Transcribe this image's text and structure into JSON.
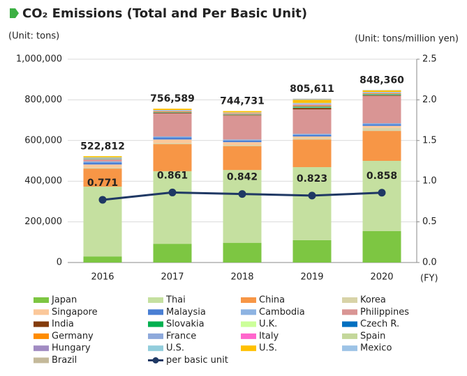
{
  "chart_data": {
    "type": "bar",
    "stacked": true,
    "title": "CO₂ Emissions (Total and Per Basic Unit)",
    "y_label": "(Unit: tons)",
    "y2_label": "(Unit: tons/million yen)",
    "x_label": "(FY)",
    "categories": [
      "2016",
      "2017",
      "2018",
      "2019",
      "2020"
    ],
    "totals": [
      522812,
      756589,
      744731,
      805611,
      848360
    ],
    "total_labels": [
      "522,812",
      "756,589",
      "744,731",
      "805,611",
      "848,360"
    ],
    "ylim": [
      0,
      1000000
    ],
    "yticks": [
      0,
      {
        "value": 200000,
        "label": "200,000"
      },
      {
        "value": 400000,
        "label": "400,000"
      },
      {
        "value": 600000,
        "label": "600,000"
      },
      {
        "value": 800000,
        "label": "800,000"
      },
      {
        "value": 1000000,
        "label": "1,000,000"
      }
    ],
    "y2lim": [
      0,
      2.5
    ],
    "y2ticks": [
      {
        "value": 0,
        "label": "0.0"
      },
      0.5,
      {
        "value": 1,
        "label": "1.0"
      },
      1.5,
      {
        "value": 2,
        "label": "2.0"
      },
      2.5
    ],
    "grid": true,
    "series": [
      {
        "name": "Japan",
        "color": "#7dc642",
        "values": [
          30000,
          92000,
          97000,
          110000,
          155000
        ]
      },
      {
        "name": "Thai",
        "color": "#c5e0a0",
        "values": [
          343000,
          357000,
          358000,
          359000,
          345000
        ]
      },
      {
        "name": "China",
        "color": "#f79646",
        "values": [
          89000,
          133000,
          117000,
          136000,
          147000
        ]
      },
      {
        "name": "Korea",
        "color": "#d8d3a8",
        "values": [
          5000,
          5000,
          5000,
          5000,
          15000
        ]
      },
      {
        "name": "Singapore",
        "color": "#fbc89a",
        "values": [
          15000,
          18000,
          15000,
          10000,
          10000
        ]
      },
      {
        "name": "Malaysia",
        "color": "#4a7fd4",
        "values": [
          10000,
          10000,
          8000,
          8000,
          8000
        ]
      },
      {
        "name": "Cambodia",
        "color": "#8db3e2",
        "values": [
          5000,
          5000,
          5000,
          5000,
          5000
        ]
      },
      {
        "name": "Philippines",
        "color": "#d99594",
        "values": [
          10000,
          113000,
          117000,
          120000,
          135000
        ]
      },
      {
        "name": "India",
        "color": "#843c0c",
        "values": [
          0,
          3000,
          3000,
          7000,
          3000
        ]
      },
      {
        "name": "Slovakia",
        "color": "#00b050",
        "values": [
          0,
          0,
          0,
          2000,
          2000
        ]
      },
      {
        "name": "U.K.",
        "color": "#ccff99",
        "values": [
          2000,
          2000,
          2000,
          3000,
          2000
        ]
      },
      {
        "name": "Czech R.",
        "color": "#0070c0",
        "values": [
          2000,
          2000,
          2000,
          3000,
          2000
        ]
      },
      {
        "name": "Germany",
        "color": "#ff8c00",
        "values": [
          1000,
          3000,
          3000,
          5000,
          3000
        ]
      },
      {
        "name": "France",
        "color": "#8ea9db",
        "values": [
          1000,
          2000,
          2000,
          3000,
          2000
        ]
      },
      {
        "name": "Italy",
        "color": "#ff66cc",
        "values": [
          0,
          1000,
          1000,
          2000,
          1000
        ]
      },
      {
        "name": "Spain",
        "color": "#c4d79b",
        "values": [
          0,
          1000,
          1000,
          2000,
          1000
        ]
      },
      {
        "name": "Hungary",
        "color": "#a18bc2",
        "values": [
          1000,
          1000,
          1000,
          2000,
          1000
        ]
      },
      {
        "name": "U.S.",
        "color": "#92cddc",
        "values": [
          3000,
          2000,
          1000,
          3000,
          2000
        ]
      },
      {
        "name": "U.S.",
        "color": "#ffc000",
        "values": [
          5812,
          6589,
          6731,
          15000,
          7000
        ]
      },
      {
        "name": "Mexico",
        "color": "#9dc3e6",
        "values": [
          0,
          0,
          0,
          3000,
          1000
        ]
      },
      {
        "name": "Brazil",
        "color": "#c4b99a",
        "values": [
          0,
          0,
          0,
          2611,
          1360
        ]
      },
      {
        "name": "per basic unit",
        "color": "#1f3864",
        "type": "line",
        "axis": "y2",
        "values": [
          0.771,
          0.861,
          0.842,
          0.823,
          0.858
        ]
      }
    ]
  }
}
